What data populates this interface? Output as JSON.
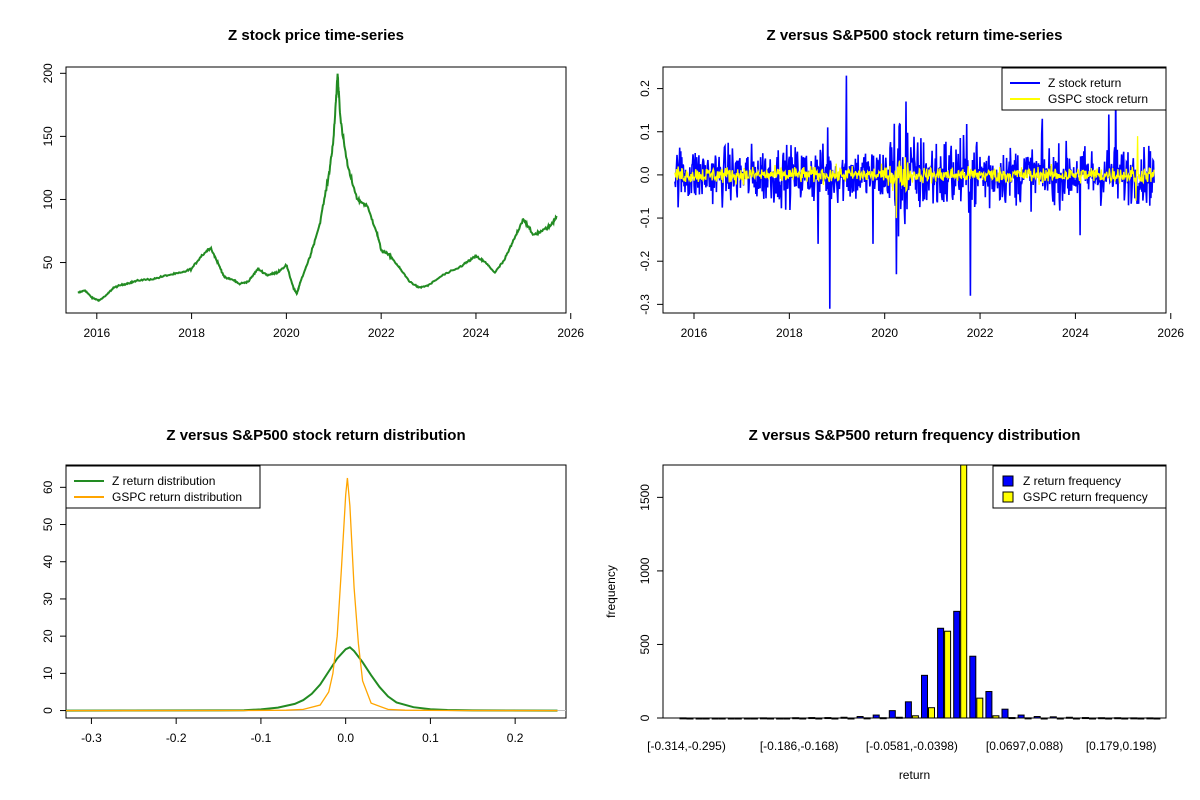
{
  "chart_data": [
    {
      "type": "line",
      "title": "Z stock price time-series",
      "xlabel": "",
      "ylabel": "",
      "xlim": [
        2015.35,
        2025.9
      ],
      "ylim": [
        10,
        205
      ],
      "x_ticks": [
        2016,
        2018,
        2020,
        2022,
        2024,
        2026
      ],
      "x_tick_labels": [
        "2016",
        "2018",
        "2020",
        "2022",
        "2024",
        "2026"
      ],
      "y_ticks": [
        50,
        100,
        150,
        200
      ],
      "y_tick_labels": [
        "50",
        "100",
        "150",
        "200"
      ],
      "series": [
        {
          "color": "#228b22",
          "x": [
            2015.6,
            2015.75,
            2015.9,
            2016.05,
            2016.2,
            2016.35,
            2016.5,
            2016.7,
            2016.9,
            2017.2,
            2017.5,
            2017.8,
            2018.0,
            2018.2,
            2018.4,
            2018.55,
            2018.7,
            2018.9,
            2019.0,
            2019.2,
            2019.4,
            2019.6,
            2019.8,
            2020.0,
            2020.15,
            2020.22,
            2020.3,
            2020.5,
            2020.7,
            2020.9,
            2021.0,
            2021.08,
            2021.15,
            2021.3,
            2021.5,
            2021.7,
            2021.9,
            2022.0,
            2022.2,
            2022.4,
            2022.6,
            2022.8,
            2023.0,
            2023.3,
            2023.6,
            2023.8,
            2024.0,
            2024.2,
            2024.4,
            2024.6,
            2024.8,
            2025.0,
            2025.2,
            2025.4,
            2025.6,
            2025.7
          ],
          "values": [
            26,
            28,
            22,
            20,
            24,
            30,
            32,
            34,
            36,
            37,
            40,
            42,
            45,
            55,
            62,
            50,
            38,
            36,
            33,
            35,
            45,
            40,
            42,
            48,
            30,
            25,
            35,
            55,
            80,
            120,
            150,
            200,
            160,
            125,
            100,
            95,
            75,
            60,
            55,
            45,
            35,
            30,
            32,
            40,
            45,
            50,
            55,
            50,
            42,
            52,
            68,
            85,
            72,
            75,
            80,
            87
          ]
        }
      ]
    },
    {
      "type": "line",
      "title": "Z versus S&P500 stock return time-series",
      "xlabel": "",
      "ylabel": "",
      "xlim": [
        2015.35,
        2025.9
      ],
      "ylim": [
        -0.32,
        0.25
      ],
      "x_ticks": [
        2016,
        2018,
        2020,
        2022,
        2024,
        2026
      ],
      "x_tick_labels": [
        "2016",
        "2018",
        "2020",
        "2022",
        "2024",
        "2026"
      ],
      "y_ticks": [
        -0.3,
        -0.2,
        -0.1,
        0.0,
        0.1,
        0.2
      ],
      "y_tick_labels": [
        "-0.3",
        "-0.2",
        "-0.1",
        "0.0",
        "0.1",
        "0.2"
      ],
      "legend": {
        "position": "top-right"
      },
      "series": [
        {
          "name": "Z stock return",
          "color": "#0000ff",
          "spikes": [
            {
              "x": 2018.85,
              "value": -0.31
            },
            {
              "x": 2019.2,
              "value": 0.23
            },
            {
              "x": 2020.25,
              "value": -0.23
            },
            {
              "x": 2021.8,
              "value": -0.28
            },
            {
              "x": 2019.75,
              "value": -0.16
            },
            {
              "x": 2018.6,
              "value": -0.16
            },
            {
              "x": 2020.45,
              "value": 0.17
            },
            {
              "x": 2024.1,
              "value": -0.14
            },
            {
              "x": 2024.7,
              "value": 0.14
            },
            {
              "x": 2024.85,
              "value": 0.2
            },
            {
              "x": 2018.8,
              "value": 0.11
            },
            {
              "x": 2023.3,
              "value": 0.13
            }
          ],
          "typical_band": [
            -0.07,
            0.07
          ]
        },
        {
          "name": "GSPC stock return",
          "color": "#ffff00",
          "spikes": [
            {
              "x": 2020.25,
              "value": 0.09
            },
            {
              "x": 2020.24,
              "value": -0.1
            },
            {
              "x": 2025.3,
              "value": 0.09
            },
            {
              "x": 2025.27,
              "value": -0.06
            }
          ],
          "typical_band": [
            -0.02,
            0.02
          ]
        }
      ]
    },
    {
      "type": "line",
      "title": "Z versus S&P500 stock return distribution",
      "xlabel": "",
      "ylabel": "",
      "xlim": [
        -0.33,
        0.26
      ],
      "ylim": [
        -2,
        66
      ],
      "x_ticks": [
        -0.3,
        -0.2,
        -0.1,
        0.0,
        0.1,
        0.2
      ],
      "x_tick_labels": [
        "-0.3",
        "-0.2",
        "-0.1",
        "0.0",
        "0.1",
        "0.2"
      ],
      "y_ticks": [
        0,
        10,
        20,
        30,
        40,
        50,
        60
      ],
      "y_tick_labels": [
        "0",
        "10",
        "20",
        "30",
        "40",
        "50",
        "60"
      ],
      "legend": {
        "position": "top-left"
      },
      "series": [
        {
          "name": "Z return distribution",
          "color": "#228b22",
          "x": [
            -0.33,
            -0.15,
            -0.12,
            -0.1,
            -0.08,
            -0.06,
            -0.05,
            -0.04,
            -0.03,
            -0.02,
            -0.01,
            0.0,
            0.005,
            0.01,
            0.02,
            0.03,
            0.04,
            0.05,
            0.06,
            0.08,
            0.1,
            0.12,
            0.15,
            0.25
          ],
          "values": [
            0,
            0.05,
            0.1,
            0.3,
            0.8,
            1.8,
            2.8,
            4.5,
            7.0,
            10.5,
            14.0,
            16.5,
            17.0,
            16.0,
            13.0,
            9.5,
            6.3,
            3.8,
            2.2,
            0.9,
            0.35,
            0.15,
            0.05,
            0
          ]
        },
        {
          "name": "GSPC return distribution",
          "color": "#ffa500",
          "x": [
            -0.33,
            -0.12,
            -0.07,
            -0.05,
            -0.03,
            -0.02,
            -0.015,
            -0.01,
            -0.005,
            0.0,
            0.002,
            0.005,
            0.01,
            0.015,
            0.02,
            0.03,
            0.05,
            0.07,
            0.12,
            0.25
          ],
          "values": [
            0,
            0.02,
            0.1,
            0.3,
            1.5,
            5.0,
            10.0,
            20.0,
            38.0,
            58.0,
            62.5,
            55.0,
            33.0,
            18.0,
            8.0,
            2.0,
            0.3,
            0.1,
            0.02,
            0
          ]
        }
      ]
    },
    {
      "type": "bar",
      "title": "Z versus S&P500 return frequency distribution",
      "xlabel": "return",
      "ylabel": "frequency",
      "ylim": [
        0,
        1720
      ],
      "y_ticks": [
        0,
        500,
        1000,
        1500
      ],
      "y_tick_labels": [
        "0",
        "500",
        "1000",
        "1500"
      ],
      "category_tick_labels": [
        "[-0.314,-0.295)",
        "[-0.186,-0.168)",
        "[-0.0581,-0.0398)",
        "[0.0697,0.088)",
        "[0.179,0.198)"
      ],
      "category_tick_indices": [
        0,
        7,
        14,
        21,
        27
      ],
      "legend": {
        "position": "top-right"
      },
      "series": [
        {
          "name": "Z return frequency",
          "color": "#0000ff",
          "values": [
            1,
            0,
            0,
            0,
            0,
            1,
            0,
            2,
            3,
            3,
            5,
            10,
            20,
            50,
            110,
            290,
            610,
            725,
            420,
            180,
            60,
            20,
            10,
            8,
            5,
            3,
            2,
            2,
            1,
            1
          ]
        },
        {
          "name": "GSPC return frequency",
          "color": "#ffff00",
          "values": [
            0,
            0,
            0,
            0,
            0,
            0,
            0,
            0,
            0,
            0,
            0,
            1,
            2,
            5,
            15,
            70,
            590,
            1720,
            135,
            15,
            3,
            1,
            0,
            0,
            0,
            0,
            0,
            0,
            0,
            0
          ]
        }
      ]
    }
  ]
}
